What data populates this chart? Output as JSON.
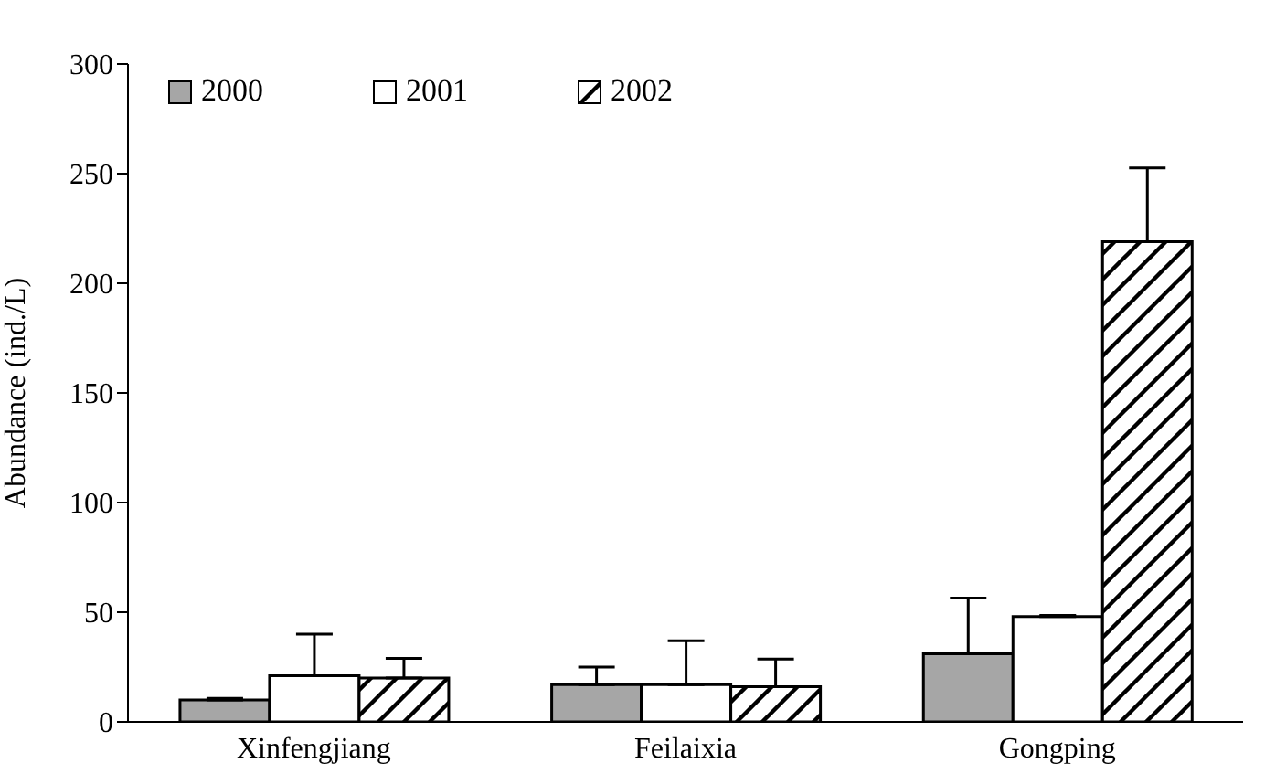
{
  "chart_data": {
    "type": "bar",
    "ylabel": "Abundance (ind./L)",
    "categories": [
      "Xinfengjiang",
      "Feilaixia",
      "Gongping"
    ],
    "series": [
      {
        "name": "2000",
        "color": "#a6a6a6",
        "values": [
          10,
          17,
          31
        ],
        "errors": [
          [
            10,
            10.7
          ],
          [
            17,
            25
          ],
          [
            31,
            56.5
          ]
        ]
      },
      {
        "name": "2001",
        "color": "#ffffff",
        "values": [
          21,
          17,
          48
        ],
        "errors": [
          [
            21,
            40
          ],
          [
            17,
            37
          ],
          [
            48,
            48.5
          ]
        ]
      },
      {
        "name": "2002",
        "color": "#000000",
        "values": [
          20,
          16,
          219
        ],
        "errors": [
          [
            20,
            29
          ],
          [
            16,
            28.6
          ],
          [
            219,
            252.6
          ]
        ]
      }
    ],
    "ylim": [
      0,
      300
    ],
    "yticks": [
      0,
      50,
      100,
      150,
      200,
      250,
      300
    ],
    "grid": false,
    "legend": "top left"
  }
}
